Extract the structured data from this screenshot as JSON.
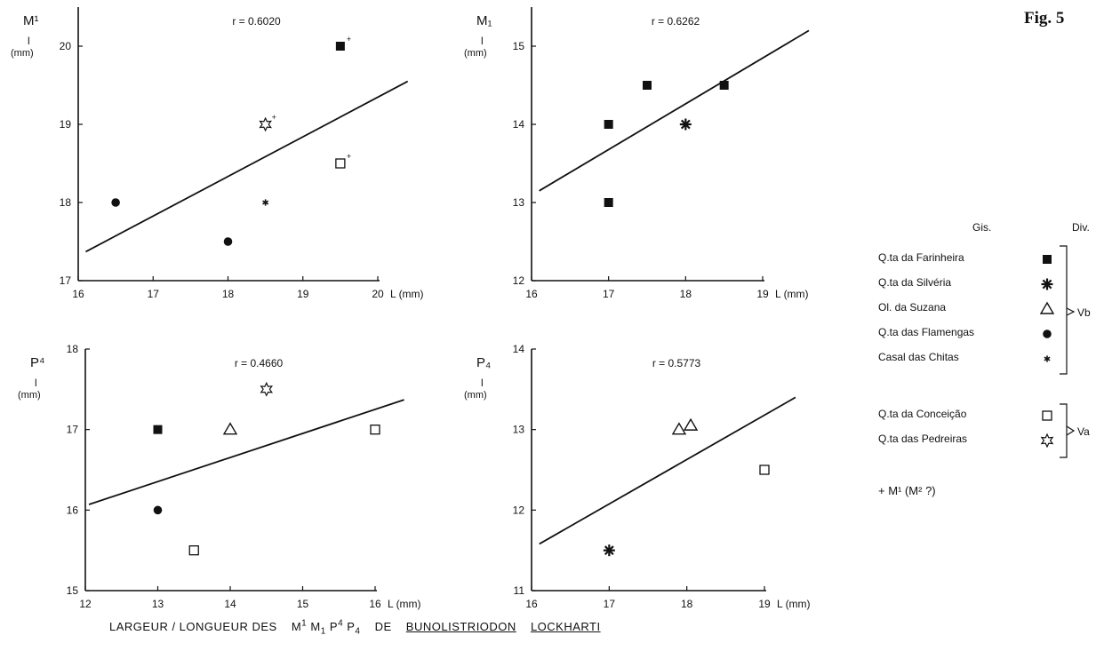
{
  "figure_label": "Fig. 5",
  "caption": {
    "prefix": "LARGEUR / LONGUEUR  DES",
    "teeth": [
      "M",
      "1",
      "M",
      "1",
      "P",
      "4",
      "P",
      "4"
    ],
    "de": "DE",
    "genus": "BUNOLISTRIODON",
    "species": "LOCKHARTI"
  },
  "legend": {
    "col_gis": "Gis.",
    "col_div": "Div.",
    "items": [
      {
        "name": "Q.ta da Farinheira",
        "symbol": "filled-square-icon"
      },
      {
        "name": "Q.ta da Silvéria",
        "symbol": "asterisk-burst-icon"
      },
      {
        "name": "Ol. da Suzana",
        "symbol": "open-triangle-icon"
      },
      {
        "name": "Q.ta das Flamengas",
        "symbol": "filled-circle-icon"
      },
      {
        "name": "Casal das Chitas",
        "symbol": "small-star-icon"
      },
      {
        "name": "Q.ta da Conceição",
        "symbol": "open-square-icon"
      },
      {
        "name": "Q.ta das Pedreiras",
        "symbol": "open-star-icon"
      }
    ],
    "group_vb": "Vb",
    "group_va": "Va",
    "note": "+ M¹ (M² ?)"
  },
  "chart_data": [
    {
      "type": "scatter",
      "id": "M_upper1",
      "ylabel": "M¹",
      "ylabel_sub": "l",
      "ylabel_unit": "(mm)",
      "xlabel": "L (mm)",
      "r_label": "r = 0.6020",
      "xlim": [
        16,
        20
      ],
      "ylim": [
        17,
        20.5
      ],
      "xticks": [
        16,
        17,
        18,
        19,
        20
      ],
      "yticks": [
        17,
        18,
        19,
        20
      ],
      "points": [
        {
          "x": 16.5,
          "y": 18.0,
          "site": "filled-circle"
        },
        {
          "x": 18.0,
          "y": 17.5,
          "site": "filled-circle"
        },
        {
          "x": 18.5,
          "y": 18.0,
          "site": "small-star"
        },
        {
          "x": 18.5,
          "y": 19.0,
          "site": "open-star",
          "plus": true
        },
        {
          "x": 19.5,
          "y": 20.0,
          "site": "filled-square",
          "plus": true
        },
        {
          "x": 19.5,
          "y": 18.5,
          "site": "open-square",
          "plus": true
        }
      ],
      "regression": [
        [
          16.1,
          17.37
        ],
        [
          20.4,
          19.55
        ]
      ]
    },
    {
      "type": "scatter",
      "id": "M_lower1",
      "ylabel": "M₁",
      "ylabel_sub": "l",
      "ylabel_unit": "(mm)",
      "xlabel": "L (mm)",
      "r_label": "r = 0.6262",
      "xlim": [
        16,
        19
      ],
      "ylim": [
        12,
        15.5
      ],
      "xticks": [
        16,
        17,
        18,
        19
      ],
      "yticks": [
        12,
        13,
        14,
        15
      ],
      "points": [
        {
          "x": 17.0,
          "y": 14.0,
          "site": "filled-square"
        },
        {
          "x": 17.0,
          "y": 13.0,
          "site": "filled-square"
        },
        {
          "x": 17.5,
          "y": 14.5,
          "site": "filled-square"
        },
        {
          "x": 18.5,
          "y": 14.5,
          "site": "filled-square"
        },
        {
          "x": 18.0,
          "y": 14.0,
          "site": "asterisk-burst"
        }
      ],
      "regression": [
        [
          16.1,
          13.15
        ],
        [
          19.6,
          15.2
        ]
      ]
    },
    {
      "type": "scatter",
      "id": "P_upper4",
      "ylabel": "P⁴",
      "ylabel_sub": "l",
      "ylabel_unit": "(mm)",
      "xlabel": "L (mm)",
      "r_label": "r = 0.4660",
      "xlim": [
        12,
        16
      ],
      "ylim": [
        15,
        18
      ],
      "xticks": [
        12,
        13,
        14,
        15,
        16
      ],
      "yticks": [
        15,
        16,
        17,
        18
      ],
      "points": [
        {
          "x": 13.0,
          "y": 17.0,
          "site": "filled-square"
        },
        {
          "x": 13.0,
          "y": 16.0,
          "site": "filled-circle"
        },
        {
          "x": 14.0,
          "y": 17.0,
          "site": "open-triangle"
        },
        {
          "x": 13.5,
          "y": 15.5,
          "site": "open-square"
        },
        {
          "x": 14.5,
          "y": 17.5,
          "site": "open-star"
        },
        {
          "x": 16.0,
          "y": 17.0,
          "site": "open-square"
        }
      ],
      "regression": [
        [
          12.05,
          16.07
        ],
        [
          16.4,
          17.37
        ]
      ]
    },
    {
      "type": "scatter",
      "id": "P_lower4",
      "ylabel": "P₄",
      "ylabel_sub": "l",
      "ylabel_unit": "(mm)",
      "xlabel": "L (mm)",
      "r_label": "r = 0.5773",
      "xlim": [
        16,
        19
      ],
      "ylim": [
        11,
        14
      ],
      "xticks": [
        16,
        17,
        18,
        19
      ],
      "yticks": [
        11,
        12,
        13,
        14
      ],
      "points": [
        {
          "x": 17.0,
          "y": 11.5,
          "site": "asterisk-burst"
        },
        {
          "x": 17.9,
          "y": 13.0,
          "site": "open-triangle"
        },
        {
          "x": 18.05,
          "y": 13.05,
          "site": "open-triangle"
        },
        {
          "x": 19.0,
          "y": 12.5,
          "site": "open-square"
        }
      ],
      "regression": [
        [
          16.1,
          11.58
        ],
        [
          19.4,
          13.4
        ]
      ]
    }
  ]
}
